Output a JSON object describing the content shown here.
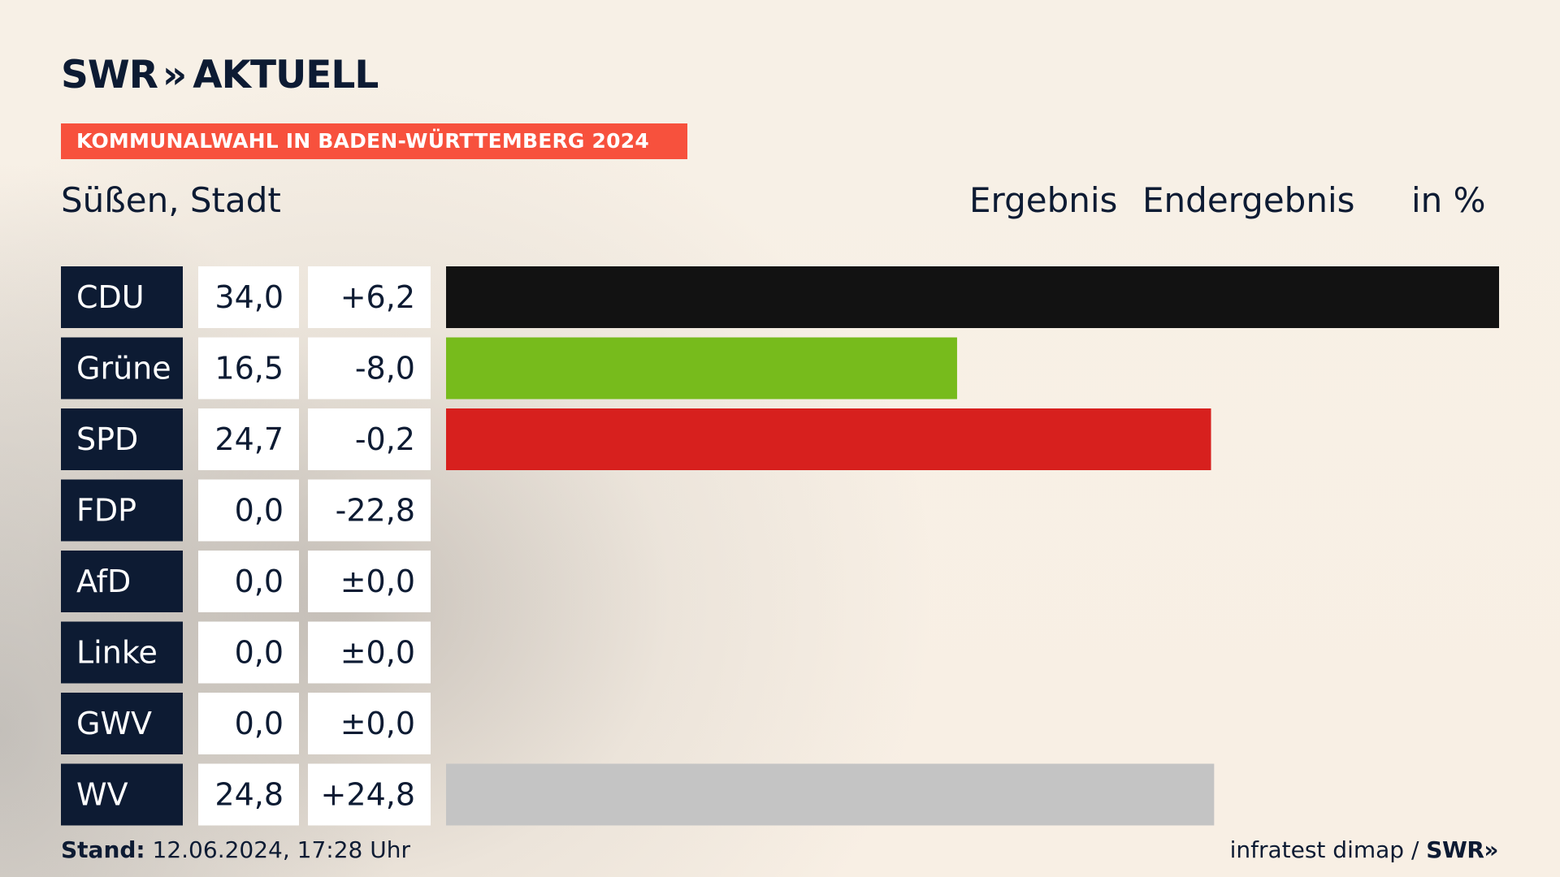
{
  "brand": {
    "logo_text": "SWR",
    "logo_chevrons": "»",
    "logo_suffix": "AKTUELL",
    "banner": "KOMMUNALWAHL IN BADEN-WÜRTTEMBERG 2024"
  },
  "header": {
    "place": "Süßen, Stadt",
    "result_label": "Ergebnis",
    "status_label": "Endergebnis",
    "unit_label": "in %"
  },
  "colors": {
    "label_bg": "#0d1b33",
    "cell_bg": "#ffffff",
    "text": "#0d1b33",
    "banner": "#f7513d"
  },
  "chart_data": {
    "type": "bar",
    "orientation": "horizontal",
    "categories": [
      "CDU",
      "Grüne",
      "SPD",
      "FDP",
      "AfD",
      "Linke",
      "GWV",
      "WV"
    ],
    "series": [
      {
        "values": [
          34.0,
          16.5,
          24.7,
          0.0,
          0.0,
          0.0,
          0.0,
          24.8
        ],
        "value_labels": [
          "34,0",
          "16,5",
          "24,7",
          "0,0",
          "0,0",
          "0,0",
          "0,0",
          "24,8"
        ],
        "change_labels": [
          "+6,2",
          "-8,0",
          "-0,2",
          "-22,8",
          "±0,0",
          "±0,0",
          "±0,0",
          "+24,8"
        ],
        "changes": [
          6.2,
          -8.0,
          -0.2,
          -22.8,
          0.0,
          0.0,
          0.0,
          24.8
        ],
        "colors": [
          "#121212",
          "#77bb1c",
          "#d7201e",
          "#f6de00",
          "#0489db",
          "#be3075",
          "#8a8a8a",
          "#c4c4c4"
        ]
      }
    ],
    "xlim": [
      0,
      34.0
    ],
    "grid": false,
    "legend": "none"
  },
  "footer": {
    "stand_label": "Stand:",
    "stand_value": "12.06.2024, 17:28 Uhr",
    "source": "infratest dimap / ",
    "source_brand": "SWR»"
  }
}
